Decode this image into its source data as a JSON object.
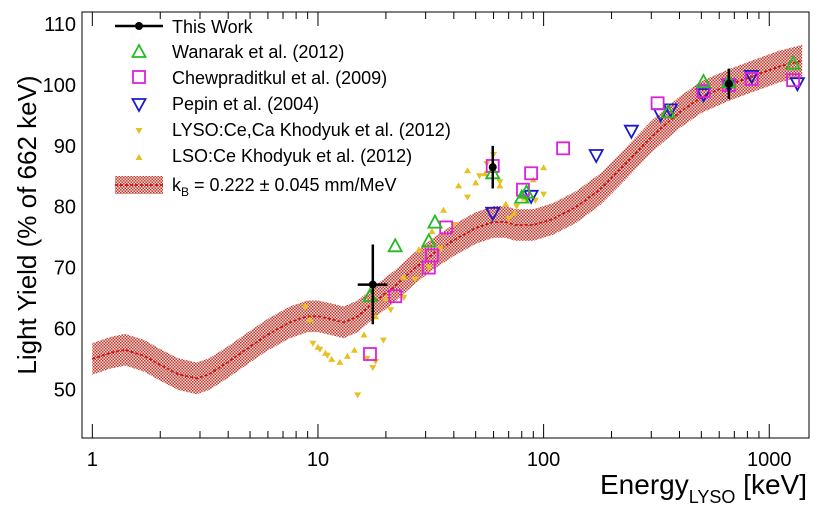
{
  "chart_data": {
    "type": "scatter",
    "x_scale": "log",
    "xlim": [
      0.9,
      1500
    ],
    "ylim": [
      42,
      112
    ],
    "x_ticks": [
      1,
      10,
      100,
      1000
    ],
    "x_tick_labels": [
      "1",
      "10",
      "100",
      "1000"
    ],
    "y_ticks": [
      50,
      60,
      70,
      80,
      90,
      100,
      110
    ],
    "y_tick_labels": [
      "50",
      "60",
      "70",
      "80",
      "90",
      "100",
      "110"
    ],
    "xlabel_main": "Energy",
    "xlabel_sub": "LYSO",
    "xlabel_unit": " [keV]",
    "ylabel": "Light Yield (% of 662 keV)",
    "legend_position": "top-left",
    "series": [
      {
        "name": "This Work",
        "marker": "filled-circle",
        "color": "#000000",
        "points": [
          {
            "x": 17.5,
            "y": 67.2,
            "xerr": [
              15.0,
              20.3
            ],
            "yerr": [
              60.7,
              73.8
            ]
          },
          {
            "x": 59.5,
            "y": 86.5,
            "xerr": [
              59.5,
              59.5
            ],
            "yerr": [
              83.0,
              90.0
            ]
          },
          {
            "x": 662,
            "y": 100.2,
            "xerr": [
              662,
              662
            ],
            "yerr": [
              97.7,
              102.7
            ]
          }
        ]
      },
      {
        "name": "Wanarak et al. (2012)",
        "marker": "open-triangle-up",
        "color": "#22bb22",
        "points": [
          {
            "x": 17,
            "y": 65.3
          },
          {
            "x": 22,
            "y": 73.5
          },
          {
            "x": 31,
            "y": 74.3
          },
          {
            "x": 33,
            "y": 77.4
          },
          {
            "x": 59.5,
            "y": 85.5
          },
          {
            "x": 80,
            "y": 81.5
          },
          {
            "x": 84,
            "y": 82.3
          },
          {
            "x": 356,
            "y": 95.5
          },
          {
            "x": 511,
            "y": 100.5
          },
          {
            "x": 662,
            "y": 100.5
          },
          {
            "x": 1275,
            "y": 103.5
          }
        ]
      },
      {
        "name": "Chewpraditkul et al. (2009)",
        "marker": "open-square",
        "color": "#dd22dd",
        "points": [
          {
            "x": 17,
            "y": 55.8
          },
          {
            "x": 22,
            "y": 65.3
          },
          {
            "x": 31,
            "y": 70.0
          },
          {
            "x": 32,
            "y": 72.0
          },
          {
            "x": 37,
            "y": 76.6
          },
          {
            "x": 59.5,
            "y": 86.7
          },
          {
            "x": 81,
            "y": 82.8
          },
          {
            "x": 88,
            "y": 85.5
          },
          {
            "x": 122,
            "y": 89.6
          },
          {
            "x": 320,
            "y": 97.0
          },
          {
            "x": 511,
            "y": 99.0
          },
          {
            "x": 662,
            "y": 100.0
          },
          {
            "x": 835,
            "y": 101.0
          },
          {
            "x": 1275,
            "y": 100.8
          }
        ]
      },
      {
        "name": "Pepin et al. (2004)",
        "marker": "open-triangle-down",
        "color": "#1a1acc",
        "points": [
          {
            "x": 59.5,
            "y": 79.0
          },
          {
            "x": 88,
            "y": 81.8
          },
          {
            "x": 171,
            "y": 88.5
          },
          {
            "x": 245,
            "y": 92.5
          },
          {
            "x": 330,
            "y": 95.2
          },
          {
            "x": 365,
            "y": 96.0
          },
          {
            "x": 511,
            "y": 98.5
          },
          {
            "x": 662,
            "y": 100.0
          },
          {
            "x": 835,
            "y": 101.5
          },
          {
            "x": 1332,
            "y": 100.3
          }
        ]
      },
      {
        "name": "LYSO:Ce,Ca Khodyuk et al. (2012)",
        "marker": "small-filled-triangle-down",
        "color": "#e8c020",
        "points": [
          {
            "x": 8.8,
            "y": 63.5
          },
          {
            "x": 9.5,
            "y": 57.5
          },
          {
            "x": 10.2,
            "y": 56.5
          },
          {
            "x": 11,
            "y": 55.5
          },
          {
            "x": 15,
            "y": 49.0
          },
          {
            "x": 16.5,
            "y": 55.0
          },
          {
            "x": 17.5,
            "y": 53.5
          },
          {
            "x": 18,
            "y": 54.5
          },
          {
            "x": 19.5,
            "y": 58.0
          },
          {
            "x": 21,
            "y": 63.0
          },
          {
            "x": 24,
            "y": 65.0
          },
          {
            "x": 27,
            "y": 68.0
          },
          {
            "x": 31,
            "y": 70.0
          },
          {
            "x": 35,
            "y": 73.0
          },
          {
            "x": 40,
            "y": 77.0
          },
          {
            "x": 46,
            "y": 81.5
          },
          {
            "x": 52,
            "y": 85.0
          },
          {
            "x": 56,
            "y": 87.0
          },
          {
            "x": 60,
            "y": 88.5
          },
          {
            "x": 64,
            "y": 84.0
          },
          {
            "x": 70,
            "y": 78.0
          },
          {
            "x": 76,
            "y": 80.0
          },
          {
            "x": 84,
            "y": 81.0
          },
          {
            "x": 92,
            "y": 81.0
          },
          {
            "x": 100,
            "y": 82.0
          }
        ]
      },
      {
        "name": "LSO:Ce Khodyuk et al. (2012)",
        "marker": "small-filled-triangle-up",
        "color": "#e8c020",
        "points": [
          {
            "x": 9.2,
            "y": 61.5
          },
          {
            "x": 10,
            "y": 57.0
          },
          {
            "x": 10.8,
            "y": 56.0
          },
          {
            "x": 11.5,
            "y": 55.0
          },
          {
            "x": 12.5,
            "y": 54.5
          },
          {
            "x": 13.5,
            "y": 55.5
          },
          {
            "x": 14.5,
            "y": 56.5
          },
          {
            "x": 16,
            "y": 59.0
          },
          {
            "x": 18,
            "y": 62.0
          },
          {
            "x": 20,
            "y": 65.0
          },
          {
            "x": 24,
            "y": 68.5
          },
          {
            "x": 28,
            "y": 73.0
          },
          {
            "x": 32,
            "y": 76.0
          },
          {
            "x": 36,
            "y": 79.5
          },
          {
            "x": 42,
            "y": 83.5
          },
          {
            "x": 46,
            "y": 86.0
          },
          {
            "x": 50,
            "y": 84.0
          },
          {
            "x": 55,
            "y": 85.5
          },
          {
            "x": 60,
            "y": 87.0
          },
          {
            "x": 64,
            "y": 83.5
          },
          {
            "x": 68,
            "y": 80.5
          },
          {
            "x": 74,
            "y": 79.0
          },
          {
            "x": 82,
            "y": 81.5
          },
          {
            "x": 90,
            "y": 84.5
          },
          {
            "x": 100,
            "y": 86.5
          }
        ]
      }
    ],
    "band": {
      "name_prefix": "k",
      "name_sub": "B",
      "name_suffix": " = 0.222 ± 0.045 mm/MeV",
      "color": "#c0392b",
      "fill": "#e6a8a8",
      "half_width": 2.6,
      "points": [
        {
          "x": 1.0,
          "y": 55.0
        },
        {
          "x": 1.2,
          "y": 56.0
        },
        {
          "x": 1.4,
          "y": 56.5
        },
        {
          "x": 1.7,
          "y": 55.5
        },
        {
          "x": 2.0,
          "y": 54.0
        },
        {
          "x": 2.4,
          "y": 52.5
        },
        {
          "x": 2.9,
          "y": 51.8
        },
        {
          "x": 3.3,
          "y": 52.5
        },
        {
          "x": 4.0,
          "y": 54.5
        },
        {
          "x": 5.0,
          "y": 57.0
        },
        {
          "x": 6.0,
          "y": 59.0
        },
        {
          "x": 7.5,
          "y": 61.0
        },
        {
          "x": 9.0,
          "y": 62.0
        },
        {
          "x": 10.0,
          "y": 62.0
        },
        {
          "x": 11.5,
          "y": 61.5
        },
        {
          "x": 13.0,
          "y": 61.0
        },
        {
          "x": 15.0,
          "y": 62.0
        },
        {
          "x": 18.0,
          "y": 64.5
        },
        {
          "x": 22.0,
          "y": 67.0
        },
        {
          "x": 27.0,
          "y": 70.0
        },
        {
          "x": 33.0,
          "y": 72.5
        },
        {
          "x": 40.0,
          "y": 74.5
        },
        {
          "x": 50.0,
          "y": 76.5
        },
        {
          "x": 60.0,
          "y": 77.5
        },
        {
          "x": 68.0,
          "y": 77.5
        },
        {
          "x": 75.0,
          "y": 77.0
        },
        {
          "x": 90.0,
          "y": 77.0
        },
        {
          "x": 110.0,
          "y": 78.0
        },
        {
          "x": 140.0,
          "y": 80.0
        },
        {
          "x": 180.0,
          "y": 83.0
        },
        {
          "x": 230.0,
          "y": 87.0
        },
        {
          "x": 300.0,
          "y": 91.5
        },
        {
          "x": 400.0,
          "y": 95.5
        },
        {
          "x": 500.0,
          "y": 98.0
        },
        {
          "x": 662.0,
          "y": 100.0
        },
        {
          "x": 850.0,
          "y": 101.5
        },
        {
          "x": 1100.0,
          "y": 103.0
        },
        {
          "x": 1400.0,
          "y": 104.0
        }
      ]
    }
  }
}
